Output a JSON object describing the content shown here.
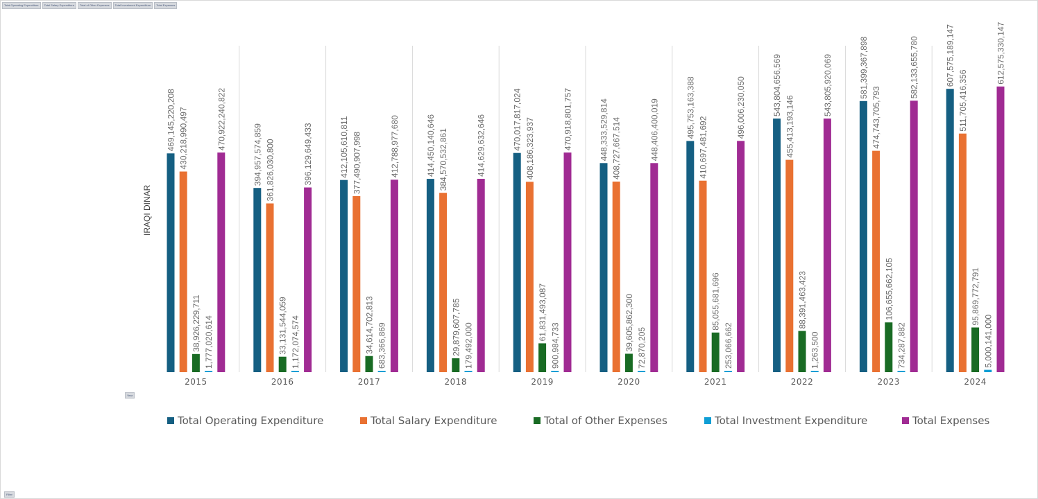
{
  "field_buttons": [
    "Total Operating Expenditure",
    "Total Salary Expenditure",
    "Total of Other Expenses",
    "Total Investment Expenditure",
    "Total Expenses"
  ],
  "axis_field_button": "Year",
  "filter_button": "Filter",
  "chart_data": {
    "type": "bar",
    "title": "",
    "xlabel": "",
    "ylabel": "IRAQI DINAR",
    "ylim": [
      0,
      700000000000
    ],
    "grid": false,
    "legend_position": "bottom",
    "categories": [
      "2015",
      "2016",
      "2017",
      "2018",
      "2019",
      "2020",
      "2021",
      "2022",
      "2023",
      "2024"
    ],
    "series": [
      {
        "name": "Total Operating Expenditure",
        "color": "#155f82",
        "values": [
          469145220208,
          394957574859,
          412105610811,
          414450140646,
          470017817024,
          448333529814,
          495753163388,
          543804656569,
          581399367898,
          607575189147
        ],
        "labels": [
          "469,145,220,208",
          "394,957,574,859",
          "412,105,610,811",
          "414,450,140,646",
          "470,017,817,024",
          "448,333,529,814",
          "495,753,163,388",
          "543,804,656,569",
          "581,399,367,898",
          "607,575,189,147"
        ]
      },
      {
        "name": "Total Salary Expenditure",
        "color": "#e97132",
        "values": [
          430218990497,
          361826030800,
          377490907998,
          384570532861,
          408186323937,
          408727667514,
          410697481692,
          455413193146,
          474743705793,
          511705416356
        ],
        "labels": [
          "430,218,990,497",
          "361,826,030,800",
          "377,490,907,998",
          "384,570,532,861",
          "408,186,323,937",
          "408,727,667,514",
          "410,697,481,692",
          "455,413,193,146",
          "474,743,705,793",
          "511,705,416,356"
        ]
      },
      {
        "name": "Total of Other Expenses",
        "color": "#196b24",
        "values": [
          38926229711,
          33131544059,
          34614702813,
          29879607785,
          61831493087,
          39605862300,
          85055681696,
          88391463423,
          106655662105,
          95869772791
        ],
        "labels": [
          "38,926,229,711",
          "33,131,544,059",
          "34,614,702,813",
          "29,879,607,785",
          "61,831,493,087",
          "39,605,862,300",
          "85,055,681,696",
          "88,391,463,423",
          "106,655,662,105",
          "95,869,772,791"
        ]
      },
      {
        "name": "Total Investment Expenditure",
        "color": "#0f9ed5",
        "values": [
          1777020614,
          1172074574,
          683366869,
          179492000,
          900984733,
          72870205,
          253066662,
          1263500,
          734287882,
          5000141000
        ],
        "labels": [
          "1,777,020,614",
          "1,172,074,574",
          "683,366,869",
          "179,492,000",
          "900,984,733",
          "72,870,205",
          "253,066,662",
          "1,263,500",
          "734,287,882",
          "5,000,141,000"
        ]
      },
      {
        "name": "Total Expenses",
        "color": "#a02b93",
        "values": [
          470922240822,
          396129649433,
          412788977680,
          414629632646,
          470918801757,
          448406400019,
          496006230050,
          543805920069,
          582133655780,
          612575330147
        ],
        "labels": [
          "470,922,240,822",
          "396,129,649,433",
          "412,788,977,680",
          "414,629,632,646",
          "470,918,801,757",
          "448,406,400,019",
          "496,006,230,050",
          "543,805,920,069",
          "582,133,655,780",
          "612,575,330,147"
        ]
      }
    ]
  }
}
